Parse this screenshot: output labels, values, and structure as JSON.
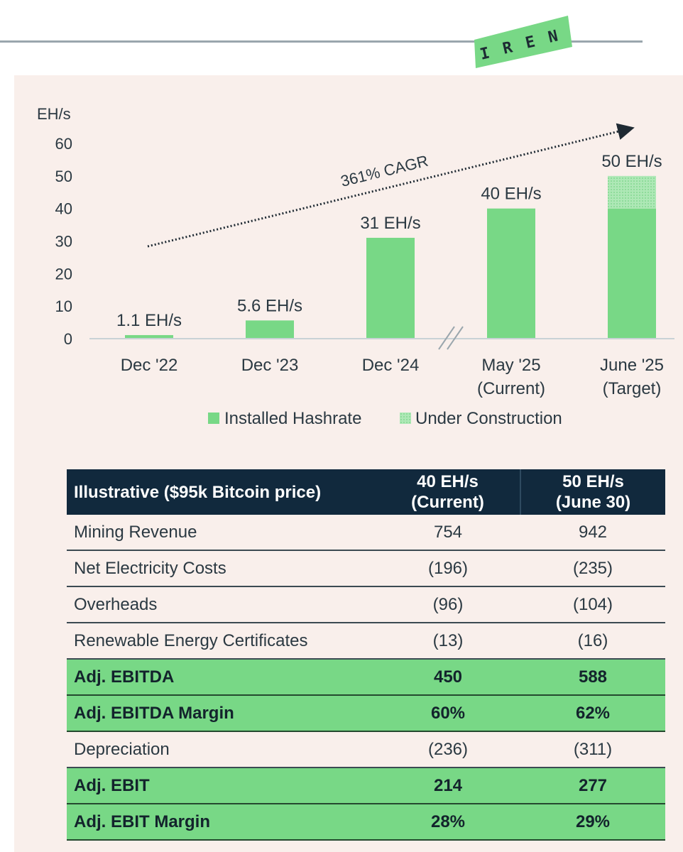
{
  "logo": {
    "letters": [
      "I",
      "R",
      "E",
      "N"
    ],
    "color": "#78d886"
  },
  "chart_data": {
    "type": "bar",
    "ylabel": "EH/s",
    "ylim": [
      0,
      60
    ],
    "yticks": [
      0,
      10,
      20,
      30,
      40,
      50,
      60
    ],
    "categories": [
      {
        "line1": "Dec '22",
        "line2": ""
      },
      {
        "line1": "Dec '23",
        "line2": ""
      },
      {
        "line1": "Dec '24",
        "line2": ""
      },
      {
        "line1": "May '25",
        "line2": "(Current)"
      },
      {
        "line1": "June '25",
        "line2": "(Target)"
      }
    ],
    "series": [
      {
        "name": "Installed Hashrate",
        "values": [
          1.1,
          5.6,
          31,
          40,
          40
        ],
        "color": "#78d886"
      },
      {
        "name": "Under Construction",
        "values": [
          0,
          0,
          0,
          0,
          10
        ],
        "color": "#aee8b6"
      }
    ],
    "data_labels": [
      "1.1 EH/s",
      "5.6 EH/s",
      "31 EH/s",
      "40 EH/s",
      "50 EH/s"
    ],
    "annotation": "361% CAGR",
    "axis_break_between": [
      2,
      3
    ],
    "legend_position": "bottom"
  },
  "table": {
    "header": {
      "label": "Illustrative ($95k Bitcoin price)",
      "col1": [
        "40 EH/s",
        "(Current)"
      ],
      "col2": [
        "50 EH/s",
        "(June 30)"
      ]
    },
    "rows": [
      {
        "label": "Mining Revenue",
        "v1": "754",
        "v2": "942",
        "highlight": false
      },
      {
        "label": "Net Electricity Costs",
        "v1": "(196)",
        "v2": "(235)",
        "highlight": false
      },
      {
        "label": "Overheads",
        "v1": "(96)",
        "v2": "(104)",
        "highlight": false
      },
      {
        "label": "Renewable Energy Certificates",
        "v1": "(13)",
        "v2": "(16)",
        "highlight": false
      },
      {
        "label": "Adj. EBITDA",
        "v1": "450",
        "v2": "588",
        "highlight": true
      },
      {
        "label": "Adj. EBITDA Margin",
        "v1": "60%",
        "v2": "62%",
        "highlight": true
      },
      {
        "label": "Depreciation",
        "v1": "(236)",
        "v2": "(311)",
        "highlight": false
      },
      {
        "label": "Adj. EBIT",
        "v1": "214",
        "v2": "277",
        "highlight": true
      },
      {
        "label": "Adj. EBIT Margin",
        "v1": "28%",
        "v2": "29%",
        "highlight": true
      }
    ]
  }
}
